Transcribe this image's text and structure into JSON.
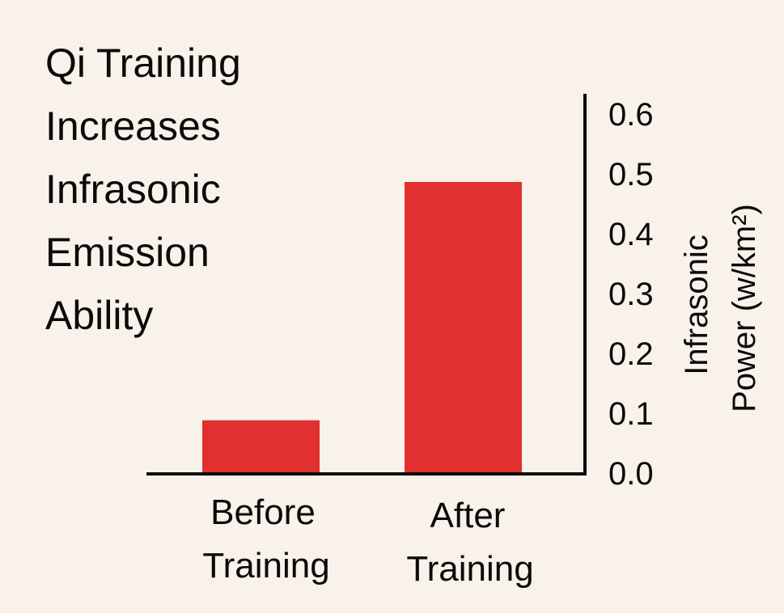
{
  "chart_data": {
    "type": "bar",
    "title_lines": [
      "Qi Training",
      "Increases",
      "Infrasonic",
      "Emission",
      "Ability"
    ],
    "categories": [
      {
        "lines": [
          "Before",
          "Training"
        ]
      },
      {
        "lines": [
          "After",
          "Training"
        ]
      }
    ],
    "values": [
      0.09,
      0.49
    ],
    "ylabel_lines": [
      "Infrasonic",
      "Power (w/km²)"
    ],
    "yticks": [
      "0.6",
      "0.5",
      "0.4",
      "0.3",
      "0.2",
      "0.1",
      "0.0"
    ],
    "ylim": [
      0,
      0.6
    ],
    "y_axis_side": "right",
    "bar_color": "#e0302f",
    "background_color": "#f8f2ea",
    "grid": false,
    "legend": null
  }
}
